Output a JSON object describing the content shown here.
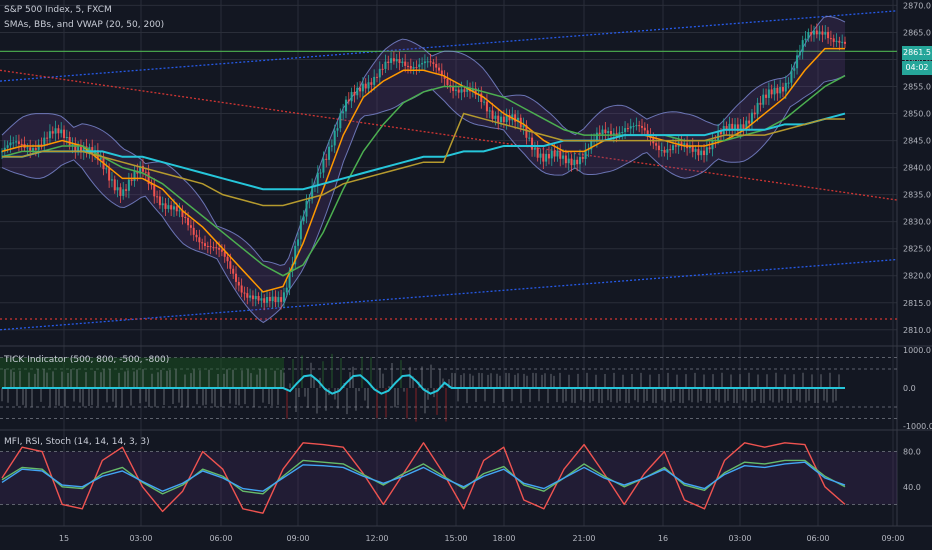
{
  "header": {
    "symbol": "S&P 500 Index, 5, FXCM",
    "indicators": "SMAs, BBs, and VWAP (20, 50, 200)"
  },
  "panels": {
    "tick_title": "TICK Indicator (500, 800, -500, -800)",
    "osc_title": "MFI, RSI, Stoch (14, 14, 14, 3, 3)"
  },
  "badges": {
    "price": "2861.5",
    "time": "04:02"
  },
  "colors": {
    "bg": "#131722",
    "grid": "#2a2e39",
    "up": "#26a69a",
    "down": "#ef5350",
    "sma20": "#ff9800",
    "sma50": "#4caf50",
    "sma200": "#26c6da",
    "vwap": "#b59a2e",
    "bb": "#7e8bd6",
    "blue_trend": "#2962ff",
    "red_trend": "#e53935",
    "hline": "#4caf50"
  },
  "chart_data": [
    {
      "type": "candlestick",
      "title": "S&P 500 Index, 5, FXCM",
      "ylim": [
        2807,
        2871
      ],
      "y_ticks": [
        2810.0,
        2815.0,
        2820.0,
        2825.0,
        2830.0,
        2835.0,
        2840.0,
        2845.0,
        2850.0,
        2855.0,
        2860.0,
        2865.0,
        2870.0
      ],
      "x_tick_labels": [
        "15",
        "03:00",
        "06:00",
        "09:00",
        "12:00",
        "15:00",
        "18:00",
        "21:00",
        "16",
        "03:00",
        "06:00",
        "09:00"
      ],
      "close_path": [
        2843,
        2844,
        2845,
        2846,
        2844,
        2840,
        2836,
        2839,
        2834,
        2830,
        2827,
        2823,
        2818,
        2814,
        2817,
        2830,
        2842,
        2850,
        2856,
        2858,
        2860,
        2859,
        2857,
        2854,
        2852,
        2849,
        2847,
        2842,
        2841,
        2843,
        2846,
        2848,
        2846,
        2844,
        2843,
        2844,
        2846,
        2849,
        2852,
        2856,
        2863,
        2866,
        2862
      ],
      "series": [
        {
          "name": "SMA 20",
          "values": [
            2843,
            2844,
            2844,
            2845,
            2844,
            2841,
            2838,
            2838,
            2836,
            2832,
            2829,
            2825,
            2821,
            2817,
            2818,
            2826,
            2836,
            2846,
            2853,
            2856,
            2858,
            2858,
            2857,
            2855,
            2853,
            2850,
            2848,
            2845,
            2843,
            2843,
            2845,
            2846,
            2846,
            2845,
            2844,
            2844,
            2845,
            2847,
            2850,
            2853,
            2858,
            2862,
            2862
          ]
        },
        {
          "name": "SMA 50",
          "values": [
            2842,
            2843,
            2843,
            2844,
            2844,
            2842,
            2840,
            2839,
            2837,
            2834,
            2831,
            2828,
            2825,
            2822,
            2820,
            2822,
            2828,
            2836,
            2843,
            2848,
            2852,
            2854,
            2855,
            2855,
            2854,
            2853,
            2851,
            2849,
            2847,
            2846,
            2846,
            2846,
            2846,
            2846,
            2845,
            2845,
            2845,
            2846,
            2847,
            2849,
            2852,
            2855,
            2857
          ]
        },
        {
          "name": "SMA 200",
          "values": [
            2842,
            2842,
            2843,
            2843,
            2843,
            2843,
            2842,
            2842,
            2841,
            2840,
            2839,
            2838,
            2837,
            2836,
            2836,
            2836,
            2837,
            2838,
            2839,
            2840,
            2841,
            2842,
            2842,
            2843,
            2843,
            2844,
            2844,
            2844,
            2845,
            2845,
            2845,
            2846,
            2846,
            2846,
            2846,
            2846,
            2847,
            2847,
            2847,
            2848,
            2848,
            2849,
            2850
          ]
        },
        {
          "name": "VWAP",
          "values": [
            2842,
            2842,
            2843,
            2843,
            2843,
            2842,
            2841,
            2840,
            2839,
            2838,
            2837,
            2835,
            2834,
            2833,
            2833,
            2834,
            2835,
            2837,
            2838,
            2839,
            2840,
            2841,
            2841,
            2850,
            2849,
            2848,
            2847,
            2846,
            2845,
            2845,
            2845,
            2845,
            2845,
            2845,
            2845,
            2845,
            2846,
            2846,
            2846,
            2847,
            2848,
            2849,
            2849
          ]
        }
      ],
      "trendlines": [
        {
          "name": "upper blue",
          "from": [
            0,
            2856
          ],
          "to": [
            1,
            2869
          ]
        },
        {
          "name": "lower blue",
          "from": [
            0,
            2810
          ],
          "to": [
            1,
            2823
          ]
        },
        {
          "name": "red diagonal",
          "from": [
            0,
            2858
          ],
          "to": [
            1,
            2834
          ]
        },
        {
          "name": "red horizontal",
          "from": [
            0,
            2812
          ],
          "to": [
            1,
            2812
          ]
        },
        {
          "name": "green horizontal",
          "from": [
            0,
            2861.5
          ],
          "to": [
            1,
            2861.5
          ]
        }
      ]
    },
    {
      "type": "area",
      "title": "TICK Indicator (500, 800, -500, -800)",
      "ylim": [
        -1000,
        1000
      ],
      "y_ticks": [
        -1000.0,
        0.0,
        1000.0
      ],
      "levels": [
        800,
        500,
        -500,
        -800
      ]
    },
    {
      "type": "line",
      "title": "MFI, RSI, Stoch (14, 14, 14, 3, 3)",
      "ylim": [
        0,
        100
      ],
      "y_ticks": [
        40.0,
        80.0
      ],
      "levels": [
        80,
        20
      ],
      "series": [
        {
          "name": "Stoch",
          "values": [
            50,
            85,
            80,
            20,
            15,
            70,
            85,
            40,
            12,
            35,
            80,
            60,
            15,
            10,
            60,
            90,
            88,
            85,
            55,
            20,
            55,
            90,
            55,
            15,
            70,
            85,
            25,
            15,
            60,
            88,
            55,
            20,
            55,
            80,
            25,
            15,
            70,
            90,
            85,
            90,
            88,
            40,
            20
          ]
        },
        {
          "name": "RSI",
          "values": [
            48,
            62,
            60,
            40,
            38,
            55,
            62,
            45,
            32,
            42,
            60,
            52,
            35,
            32,
            52,
            70,
            68,
            66,
            54,
            42,
            55,
            66,
            52,
            38,
            55,
            63,
            42,
            35,
            50,
            66,
            52,
            40,
            50,
            62,
            42,
            36,
            56,
            68,
            66,
            70,
            70,
            52,
            40
          ]
        },
        {
          "name": "MFI",
          "values": [
            45,
            60,
            58,
            42,
            40,
            52,
            58,
            46,
            35,
            44,
            58,
            50,
            38,
            35,
            50,
            65,
            64,
            62,
            52,
            44,
            52,
            62,
            50,
            40,
            52,
            60,
            44,
            38,
            50,
            62,
            50,
            42,
            50,
            60,
            44,
            38,
            54,
            64,
            62,
            66,
            68,
            50,
            42
          ]
        }
      ]
    }
  ]
}
